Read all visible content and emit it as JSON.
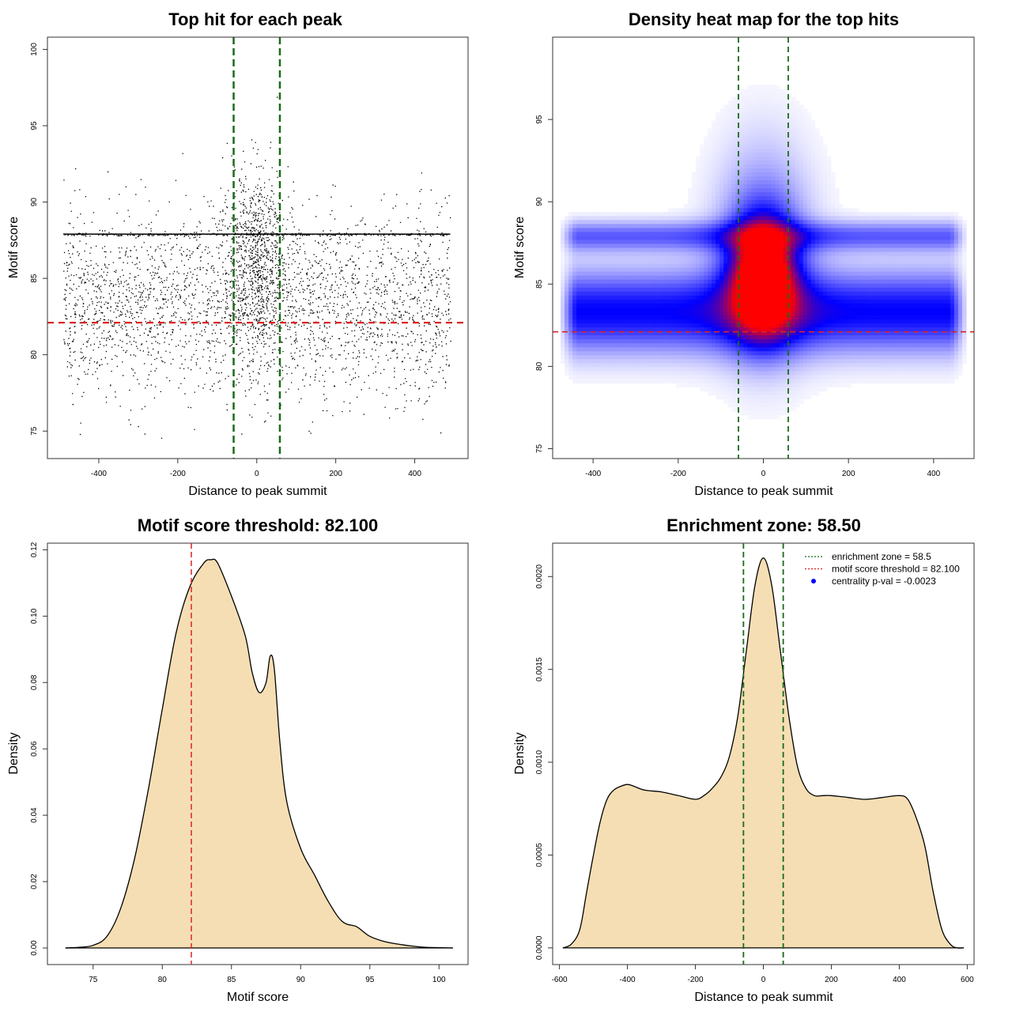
{
  "colors": {
    "scatter_points": "#000000",
    "threshold_line": "#dd2222",
    "zone_line": "#1a6b1a",
    "density_fill": "#f5deb3",
    "heat_low": "#ffffff",
    "heat_mid": "#0000ff",
    "heat_high": "#ff0000",
    "legend_point": "#0000ff"
  },
  "chart_data": [
    {
      "type": "scatter",
      "title": "Top hit for each peak",
      "xlabel": "Distance to peak summit",
      "ylabel": "Motif score",
      "xlim": [
        -530,
        535
      ],
      "ylim": [
        73.2,
        100.8
      ],
      "xticks": [
        -400,
        -200,
        0,
        200,
        400
      ],
      "yticks": [
        75,
        80,
        85,
        90,
        95,
        100
      ],
      "x_range": [
        -490,
        490
      ],
      "notable_horizontal_line": 87.9,
      "threshold_line": 82.1,
      "zone_lines": [
        -58.5,
        58.5
      ],
      "grid": false
    },
    {
      "type": "heatmap",
      "title": "Density heat map for the top hits",
      "xlabel": "Distance to peak summit",
      "ylabel": "Motif score",
      "xlim": [
        -495,
        495
      ],
      "ylim": [
        74.4,
        100.0
      ],
      "xticks": [
        -400,
        -200,
        0,
        200,
        400
      ],
      "yticks": [
        75,
        80,
        85,
        90,
        95
      ],
      "threshold_line": 82.1,
      "zone_lines": [
        -58.5,
        58.5
      ],
      "peak": {
        "x": 0,
        "y": 85
      },
      "color_scale": [
        "white",
        "blue",
        "red"
      ]
    },
    {
      "type": "area",
      "title": "Motif score threshold: 82.100",
      "xlabel": "Motif score",
      "ylabel": "Density",
      "xlim": [
        71.7,
        102.1
      ],
      "ylim": [
        -0.005,
        0.122
      ],
      "xticks": [
        75,
        80,
        85,
        90,
        95,
        100
      ],
      "yticks": [
        0.0,
        0.02,
        0.04,
        0.06,
        0.08,
        0.1,
        0.12
      ],
      "ytick_labels": [
        "0.00",
        "0.02",
        "0.04",
        "0.06",
        "0.08",
        "0.10",
        "0.12"
      ],
      "threshold_line": 82.1,
      "x": [
        73,
        74,
        75,
        76,
        77,
        78,
        79,
        80,
        81,
        82,
        83,
        83.5,
        84,
        85,
        86,
        86.5,
        87,
        87.5,
        87.8,
        88.1,
        88.5,
        89,
        90,
        91,
        92,
        93,
        94,
        94.5,
        95,
        96,
        97,
        98,
        99,
        100,
        101
      ],
      "y": [
        0.0,
        0.0002,
        0.0008,
        0.0035,
        0.012,
        0.027,
        0.048,
        0.072,
        0.095,
        0.109,
        0.116,
        0.117,
        0.116,
        0.106,
        0.094,
        0.083,
        0.077,
        0.08,
        0.088,
        0.084,
        0.062,
        0.044,
        0.03,
        0.022,
        0.014,
        0.008,
        0.0065,
        0.005,
        0.0035,
        0.002,
        0.0012,
        0.0006,
        0.0002,
        0.0001,
        0.0
      ]
    },
    {
      "type": "area",
      "title": "Enrichment zone: 58.50",
      "xlabel": "Distance to peak summit",
      "ylabel": "Density",
      "xlim": [
        -620,
        620
      ],
      "ylim": [
        -9e-05,
        0.00218
      ],
      "xticks": [
        -600,
        -400,
        -200,
        0,
        200,
        400,
        600
      ],
      "yticks": [
        0.0,
        0.0005,
        0.001,
        0.0015,
        0.002
      ],
      "ytick_labels": [
        "0.0000",
        "0.0005",
        "0.0010",
        "0.0015",
        "0.0020"
      ],
      "zone_lines": [
        -58.5,
        58.5
      ],
      "x": [
        -590,
        -565,
        -540,
        -520,
        -500,
        -480,
        -460,
        -440,
        -420,
        -400,
        -380,
        -350,
        -300,
        -250,
        -200,
        -175,
        -150,
        -125,
        -100,
        -75,
        -50,
        -25,
        0,
        25,
        50,
        75,
        100,
        125,
        150,
        175,
        200,
        250,
        300,
        350,
        400,
        425,
        450,
        475,
        500,
        525,
        550,
        570,
        590
      ],
      "y": [
        0.0,
        2e-05,
        0.0001,
        0.0003,
        0.0005,
        0.00068,
        0.0008,
        0.00085,
        0.00087,
        0.00088,
        0.00087,
        0.00085,
        0.00084,
        0.00082,
        0.0008,
        0.00082,
        0.00086,
        0.00092,
        0.00103,
        0.00125,
        0.0016,
        0.00195,
        0.0021,
        0.00195,
        0.0016,
        0.00125,
        0.00098,
        0.00086,
        0.00082,
        0.00082,
        0.00082,
        0.00081,
        0.0008,
        0.00081,
        0.00082,
        0.0008,
        0.0007,
        0.00055,
        0.0003,
        0.0001,
        2e-05,
        0.0,
        0.0
      ],
      "legend": {
        "placement": "top-right",
        "entries": [
          {
            "label": "enrichment zone = 58.5",
            "style": "dotted-line",
            "color": "#1a6b1a"
          },
          {
            "label": "motif score threshold = 82.100",
            "style": "dotted-line",
            "color": "#dd2222"
          },
          {
            "label": "centrality p-val = -0.0023",
            "style": "point",
            "color": "#0000ff"
          }
        ]
      }
    }
  ]
}
